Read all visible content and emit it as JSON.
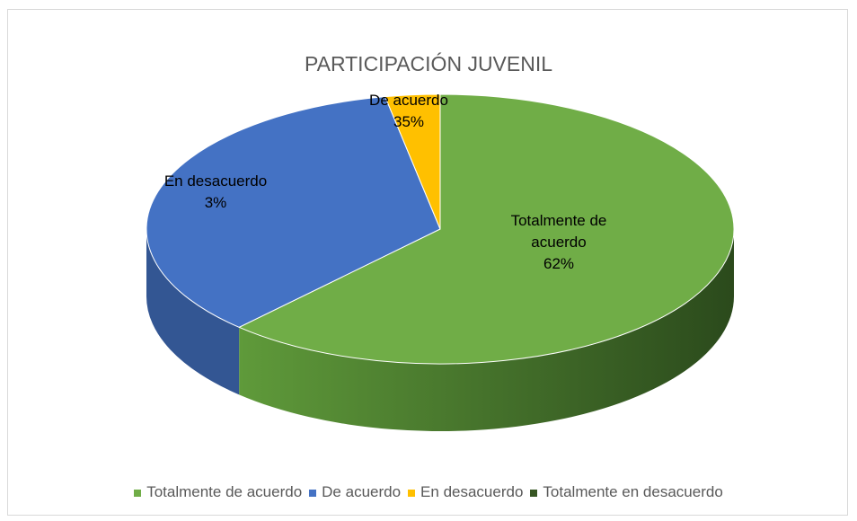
{
  "chart_data": {
    "type": "pie3d",
    "title": "PARTICIPACIÓN JUVENIL",
    "categories": [
      "Totalmente de acuerdo",
      "De acuerdo",
      "En desacuerdo",
      "Totalmente en desacuerdo"
    ],
    "values": [
      62,
      35,
      3,
      0
    ],
    "value_labels": [
      "62%",
      "35%",
      "3%",
      null
    ],
    "colors": [
      "#70ad47",
      "#4472c4",
      "#ffc000",
      "#375623"
    ],
    "legend": "bottom"
  }
}
